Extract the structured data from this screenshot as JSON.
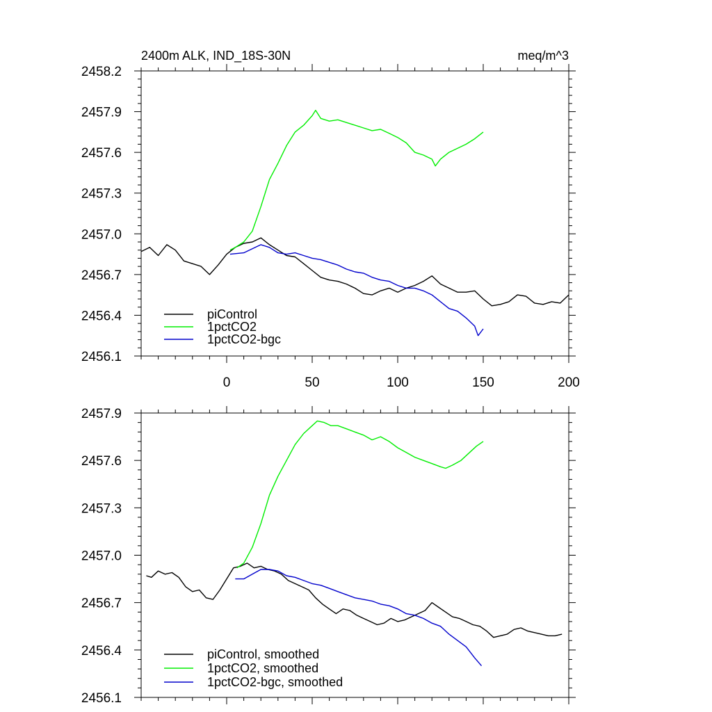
{
  "chart_data": [
    {
      "type": "line",
      "title_left": "2400m ALK, IND_18S-30N",
      "title_right": "meq/m^3",
      "xlim": [
        -50,
        200
      ],
      "ylim": [
        2456.1,
        2458.2
      ],
      "xticks": [
        0,
        50,
        100,
        150,
        200
      ],
      "xtick_labels": [
        "0",
        "50",
        "100",
        "150",
        "200"
      ],
      "yticks": [
        2456.1,
        2456.4,
        2456.7,
        2457.0,
        2457.3,
        2457.6,
        2457.9,
        2458.2
      ],
      "ytick_labels": [
        "2456.1",
        "2456.4",
        "2456.7",
        "2457.0",
        "2457.3",
        "2457.6",
        "2457.9",
        "2458.2"
      ],
      "legend_position": "bottom-left",
      "series": [
        {
          "name": "piControl",
          "color": "#000000",
          "x": [
            -50,
            -45,
            -40,
            -35,
            -30,
            -25,
            -20,
            -15,
            -10,
            -5,
            0,
            5,
            10,
            15,
            20,
            25,
            30,
            35,
            40,
            45,
            50,
            55,
            60,
            65,
            70,
            75,
            80,
            85,
            90,
            95,
            100,
            105,
            110,
            115,
            120,
            125,
            130,
            135,
            140,
            145,
            150,
            155,
            160,
            165,
            170,
            175,
            180,
            185,
            190,
            195,
            200
          ],
          "y": [
            2456.87,
            2456.9,
            2456.84,
            2456.92,
            2456.88,
            2456.8,
            2456.78,
            2456.76,
            2456.7,
            2456.77,
            2456.85,
            2456.9,
            2456.93,
            2456.94,
            2456.97,
            2456.92,
            2456.88,
            2456.84,
            2456.83,
            2456.78,
            2456.73,
            2456.68,
            2456.66,
            2456.65,
            2456.63,
            2456.6,
            2456.56,
            2456.55,
            2456.58,
            2456.6,
            2456.57,
            2456.6,
            2456.62,
            2456.65,
            2456.69,
            2456.63,
            2456.6,
            2456.57,
            2456.57,
            2456.58,
            2456.52,
            2456.47,
            2456.48,
            2456.5,
            2456.55,
            2456.54,
            2456.49,
            2456.48,
            2456.5,
            2456.49,
            2456.55
          ]
        },
        {
          "name": "1pctCO2",
          "color": "#00ee00",
          "x": [
            2,
            5,
            10,
            15,
            20,
            25,
            30,
            35,
            40,
            45,
            50,
            52,
            55,
            60,
            65,
            70,
            75,
            80,
            85,
            90,
            95,
            100,
            105,
            110,
            115,
            120,
            122,
            125,
            130,
            135,
            140,
            145,
            150
          ],
          "y": [
            2456.88,
            2456.9,
            2456.94,
            2457.02,
            2457.2,
            2457.4,
            2457.52,
            2457.65,
            2457.75,
            2457.8,
            2457.87,
            2457.91,
            2457.85,
            2457.83,
            2457.84,
            2457.82,
            2457.8,
            2457.78,
            2457.76,
            2457.77,
            2457.74,
            2457.71,
            2457.67,
            2457.6,
            2457.58,
            2457.55,
            2457.5,
            2457.55,
            2457.6,
            2457.63,
            2457.66,
            2457.7,
            2457.75
          ]
        },
        {
          "name": "1pctCO2-bgc",
          "color": "#0000cc",
          "x": [
            2,
            10,
            20,
            25,
            30,
            35,
            40,
            45,
            50,
            55,
            60,
            65,
            70,
            75,
            80,
            85,
            90,
            95,
            100,
            105,
            110,
            115,
            120,
            125,
            130,
            135,
            140,
            145,
            147,
            150
          ],
          "y": [
            2456.85,
            2456.86,
            2456.92,
            2456.9,
            2456.86,
            2456.85,
            2456.86,
            2456.84,
            2456.82,
            2456.81,
            2456.79,
            2456.77,
            2456.74,
            2456.72,
            2456.71,
            2456.68,
            2456.66,
            2456.65,
            2456.62,
            2456.6,
            2456.6,
            2456.58,
            2456.55,
            2456.5,
            2456.45,
            2456.43,
            2456.38,
            2456.32,
            2456.25,
            2456.3
          ]
        }
      ]
    },
    {
      "type": "line",
      "xlim": [
        -50,
        200
      ],
      "ylim": [
        2456.1,
        2457.9
      ],
      "xticks": [
        0,
        50,
        100,
        150,
        200
      ],
      "yticks": [
        2456.1,
        2456.4,
        2456.7,
        2457.0,
        2457.3,
        2457.6,
        2457.9
      ],
      "ytick_labels": [
        "2456.1",
        "2456.4",
        "2456.7",
        "2457.0",
        "2457.3",
        "2457.6",
        "2457.9"
      ],
      "legend_position": "bottom-left",
      "series": [
        {
          "name": "piControl, smoothed",
          "color": "#000000",
          "x": [
            -47,
            -44,
            -40,
            -36,
            -32,
            -28,
            -24,
            -20,
            -16,
            -12,
            -8,
            -4,
            0,
            4,
            8,
            12,
            16,
            20,
            24,
            28,
            32,
            36,
            40,
            44,
            48,
            52,
            56,
            60,
            64,
            68,
            72,
            76,
            80,
            84,
            88,
            92,
            96,
            100,
            104,
            108,
            112,
            116,
            120,
            124,
            128,
            132,
            136,
            140,
            144,
            148,
            152,
            156,
            160,
            164,
            168,
            172,
            176,
            180,
            184,
            188,
            192,
            196
          ],
          "y": [
            2456.87,
            2456.86,
            2456.9,
            2456.88,
            2456.89,
            2456.86,
            2456.8,
            2456.77,
            2456.78,
            2456.73,
            2456.72,
            2456.78,
            2456.85,
            2456.92,
            2456.93,
            2456.95,
            2456.92,
            2456.93,
            2456.91,
            2456.9,
            2456.88,
            2456.84,
            2456.82,
            2456.8,
            2456.78,
            2456.73,
            2456.69,
            2456.66,
            2456.63,
            2456.66,
            2456.65,
            2456.62,
            2456.6,
            2456.58,
            2456.56,
            2456.57,
            2456.6,
            2456.58,
            2456.59,
            2456.61,
            2456.63,
            2456.65,
            2456.7,
            2456.67,
            2456.64,
            2456.61,
            2456.6,
            2456.58,
            2456.56,
            2456.55,
            2456.52,
            2456.48,
            2456.49,
            2456.5,
            2456.53,
            2456.54,
            2456.52,
            2456.51,
            2456.5,
            2456.49,
            2456.49,
            2456.5
          ]
        },
        {
          "name": "1pctCO2, smoothed",
          "color": "#00ee00",
          "x": [
            6,
            10,
            15,
            20,
            25,
            30,
            35,
            40,
            45,
            50,
            53,
            57,
            61,
            65,
            70,
            75,
            80,
            85,
            90,
            95,
            100,
            105,
            110,
            115,
            120,
            125,
            128,
            132,
            137,
            142,
            146,
            150
          ],
          "y": [
            2456.92,
            2456.95,
            2457.05,
            2457.2,
            2457.38,
            2457.5,
            2457.6,
            2457.7,
            2457.77,
            2457.82,
            2457.85,
            2457.84,
            2457.82,
            2457.82,
            2457.8,
            2457.78,
            2457.76,
            2457.73,
            2457.75,
            2457.72,
            2457.68,
            2457.65,
            2457.62,
            2457.6,
            2457.58,
            2457.56,
            2457.55,
            2457.57,
            2457.6,
            2457.65,
            2457.69,
            2457.72
          ]
        },
        {
          "name": "1pctCO2-bgc, smoothed",
          "color": "#0000cc",
          "x": [
            5,
            10,
            15,
            20,
            25,
            30,
            35,
            40,
            45,
            50,
            55,
            60,
            65,
            70,
            75,
            80,
            85,
            90,
            95,
            100,
            105,
            110,
            115,
            120,
            125,
            130,
            135,
            140,
            145,
            149
          ],
          "y": [
            2456.85,
            2456.85,
            2456.88,
            2456.91,
            2456.91,
            2456.9,
            2456.87,
            2456.86,
            2456.84,
            2456.82,
            2456.81,
            2456.79,
            2456.77,
            2456.75,
            2456.73,
            2456.72,
            2456.71,
            2456.69,
            2456.68,
            2456.66,
            2456.63,
            2456.62,
            2456.6,
            2456.57,
            2456.55,
            2456.5,
            2456.46,
            2456.42,
            2456.35,
            2456.3
          ]
        }
      ]
    }
  ]
}
